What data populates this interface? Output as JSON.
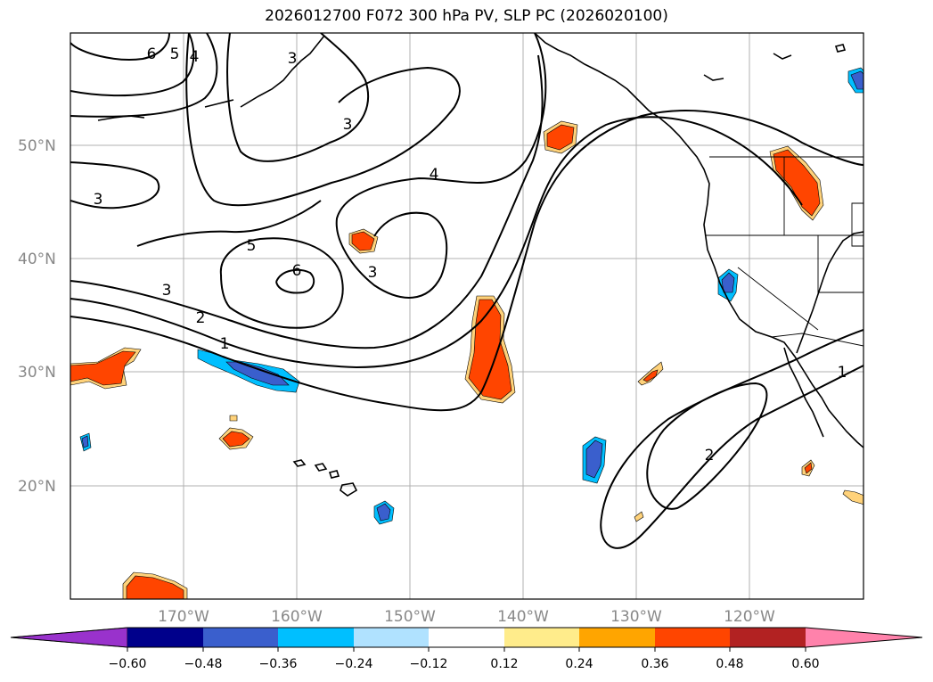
{
  "title": "2026012700 F072 300 hPa PV, SLP PC (2026020100)",
  "map": {
    "lat_labels": [
      "50°N",
      "40°N",
      "30°N",
      "20°N"
    ],
    "lon_labels": [
      "170°W",
      "160°W",
      "150°W",
      "140°W",
      "130°W",
      "120°W"
    ],
    "contour_labels": [
      "6",
      "5",
      "4",
      "3",
      "3",
      "4",
      "5",
      "6",
      "3",
      "3",
      "2",
      "1",
      "1",
      "2"
    ]
  },
  "colorbar": {
    "ticks": [
      "−0.60",
      "−0.48",
      "−0.36",
      "−0.24",
      "−0.12",
      "0.12",
      "0.24",
      "0.36",
      "0.48",
      "0.60"
    ],
    "colors": [
      "#9932cc",
      "#00008b",
      "#3a5fcd",
      "#00bfff",
      "#b0e2ff",
      "#ffffff",
      "#ffec8b",
      "#ffa500",
      "#ff4500",
      "#b22222",
      "#ff82ab"
    ]
  }
}
